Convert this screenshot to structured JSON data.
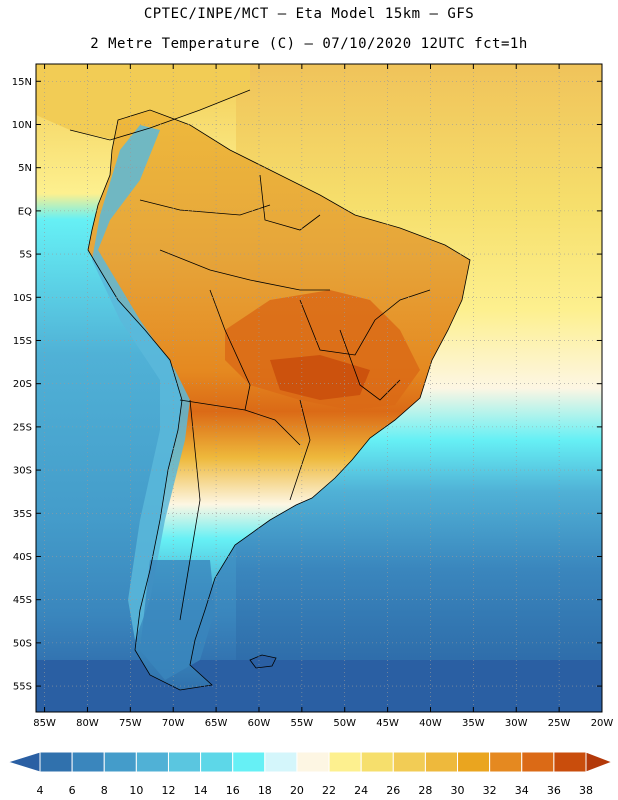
{
  "header": {
    "line1": "CPTEC/INPE/MCT –  Eta Model 15km – GFS",
    "line2": "2 Metre Temperature (C) – 07/10/2020 12UTC fct=1h"
  },
  "map": {
    "lat_labels": [
      "15N",
      "10N",
      "5N",
      "EQ",
      "5S",
      "10S",
      "15S",
      "20S",
      "25S",
      "30S",
      "35S",
      "40S",
      "45S",
      "50S",
      "55S"
    ],
    "lon_labels": [
      "85W",
      "80W",
      "75W",
      "70W",
      "65W",
      "60W",
      "55W",
      "50W",
      "45W",
      "40W",
      "35W",
      "30W",
      "25W",
      "20W"
    ],
    "colors": {
      "ocean_cold": "#2f63a8",
      "ocean_mid": "#3aa0cf",
      "ocean_warm": "#55d6e6",
      "land_hot": "#d9731c",
      "land_warm": "#e6a53a",
      "land_mild": "#f0c35a",
      "andes": "#5bb8da",
      "border": "#000000"
    }
  },
  "colorbar": {
    "ticks": [
      "4",
      "6",
      "8",
      "10",
      "12",
      "14",
      "16",
      "18",
      "20",
      "22",
      "24",
      "26",
      "28",
      "30",
      "32",
      "34",
      "36",
      "38"
    ],
    "colors": [
      "#2a5fa3",
      "#3071ad",
      "#3a86bd",
      "#449cca",
      "#50b1d6",
      "#5ac6e0",
      "#5dd7e8",
      "#66f0f5",
      "#d4f6fb",
      "#fdf6e3",
      "#fdf08f",
      "#f6df6c",
      "#f2cc55",
      "#eeb93c",
      "#eaa51f",
      "#e58920",
      "#db6a16",
      "#c94d0c",
      "#b3390a"
    ]
  }
}
